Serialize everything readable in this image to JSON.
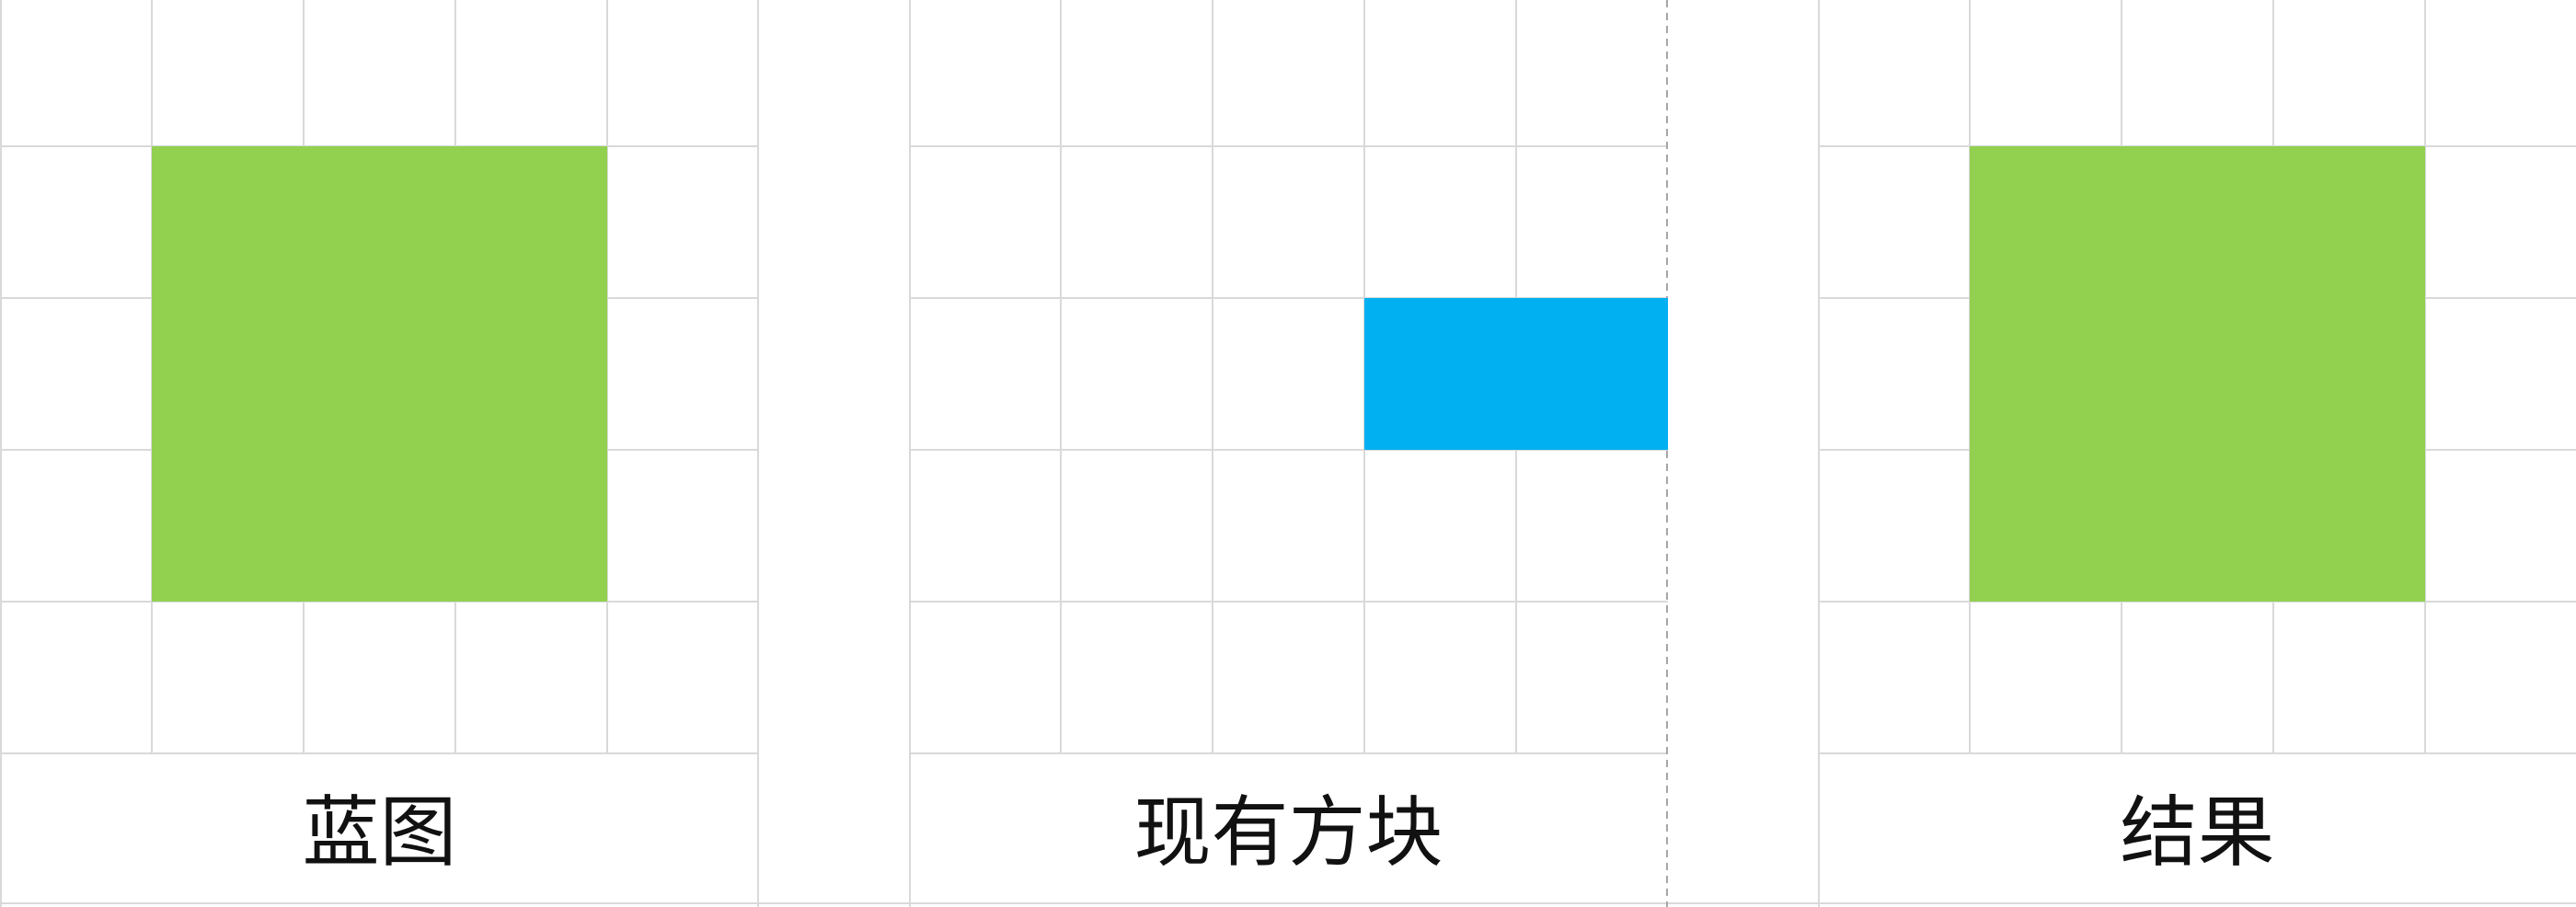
{
  "colors": {
    "background": "#ffffff",
    "grid_line": "#d9d9d9",
    "blueprint_block": "#92d050",
    "existing_block": "#00b0f0",
    "result_block": "#92d050",
    "dashed_edge": "#a6a6a6",
    "label_text": "#111111"
  },
  "panels": {
    "blueprint": {
      "label": "蓝图",
      "block_icon": "green-square"
    },
    "existing": {
      "label": "现有方块",
      "block_icon": "blue-rectangle"
    },
    "result": {
      "label": "结果",
      "block_icon": "green-square"
    }
  }
}
